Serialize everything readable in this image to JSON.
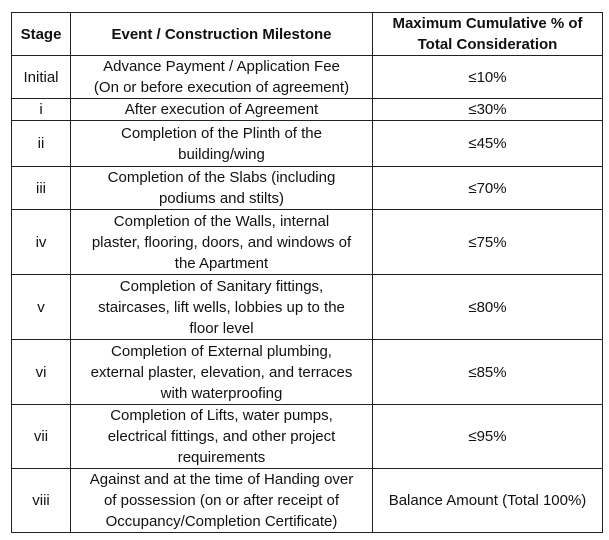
{
  "headers": {
    "stage": "Stage",
    "event": "Event / Construction Milestone",
    "percent": [
      "Maximum Cumulative % of",
      "Total Consideration"
    ]
  },
  "rows": [
    {
      "stage": "Initial",
      "event": [
        "Advance Payment / Application Fee",
        "(On or before execution of agreement)"
      ],
      "percent": "≤10%"
    },
    {
      "stage": "i",
      "event": [
        "After execution of Agreement"
      ],
      "percent": "≤30%"
    },
    {
      "stage": "ii",
      "event": [
        "Completion of the Plinth of the",
        "building/wing"
      ],
      "percent": "≤45%"
    },
    {
      "stage": "iii",
      "event": [
        "Completion of the Slabs (including",
        "podiums and stilts)"
      ],
      "percent": "≤70%"
    },
    {
      "stage": "iv",
      "event": [
        "Completion of the Walls, internal",
        "plaster, flooring, doors, and windows of",
        "the Apartment"
      ],
      "percent": "≤75%"
    },
    {
      "stage": "v",
      "event": [
        "Completion of Sanitary fittings,",
        "staircases, lift wells, lobbies up to the",
        "floor level"
      ],
      "percent": "≤80%"
    },
    {
      "stage": "vi",
      "event": [
        "Completion of External plumbing,",
        "external plaster, elevation, and terraces",
        "with waterproofing"
      ],
      "percent": "≤85%"
    },
    {
      "stage": "vii",
      "event": [
        "Completion of Lifts, water pumps,",
        "electrical fittings, and other project",
        "requirements"
      ],
      "percent": "≤95%"
    },
    {
      "stage": "viii",
      "event": [
        "Against and at the time of Handing over",
        "of possession (on or after receipt of",
        "Occupancy/Completion Certificate)"
      ],
      "percent": "Balance Amount (Total 100%)"
    }
  ]
}
